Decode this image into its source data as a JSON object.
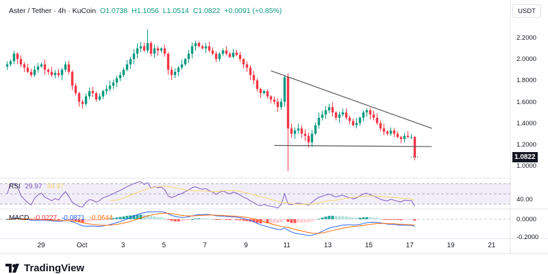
{
  "header": {
    "symbol": "Aster / Tether · 4h · KuCoin",
    "open": "O1.0738",
    "high": "H1.1056",
    "low": "L1.0514",
    "close": "C1.0822",
    "change": "+0.0091 (+0.85%)"
  },
  "currency_button": "USDT",
  "price_axis": [
    "2.2000",
    "2.0000",
    "1.8000",
    "1.6000",
    "1.4000",
    "1.2000",
    "1.0000"
  ],
  "last_price": "1.0822",
  "rsi": {
    "label": "RSI",
    "value": "29.97",
    "ma": "39.97",
    "axis": "40.00"
  },
  "macd": {
    "label": "MACD",
    "hist": "-0.0227",
    "macd": "-0.0871",
    "signal": "-0.0644",
    "axis": [
      "0.0000",
      "-0.2000"
    ]
  },
  "time_axis": [
    "29",
    "Oct",
    "3",
    "5",
    "7",
    "9",
    "11",
    "13",
    "15",
    "17",
    "19",
    "21"
  ],
  "brand": "TradingView",
  "colors": {
    "up": "#089981",
    "down": "#f23645",
    "rsi": "#7e57c2",
    "rsi_ma": "#f5d76e",
    "macd": "#2962ff",
    "signal": "#ff6d00"
  },
  "chart_data": {
    "type": "candlestick",
    "title": "Aster / Tether 4h KuCoin",
    "ylim": [
      0.95,
      2.3
    ],
    "closes": [
      1.95,
      1.98,
      2.05,
      2.0,
      1.95,
      1.92,
      1.88,
      1.85,
      1.9,
      1.93,
      1.95,
      1.9,
      1.88,
      1.85,
      1.87,
      1.85,
      1.9,
      1.95,
      1.88,
      1.75,
      1.68,
      1.6,
      1.58,
      1.65,
      1.7,
      1.68,
      1.62,
      1.65,
      1.7,
      1.72,
      1.75,
      1.78,
      1.82,
      1.85,
      1.9,
      1.95,
      2.0,
      2.05,
      2.1,
      2.12,
      2.08,
      2.15,
      2.05,
      2.1,
      2.08,
      2.1,
      2.05,
      1.9,
      1.85,
      1.88,
      1.92,
      1.95,
      2.0,
      2.05,
      2.12,
      2.15,
      2.12,
      2.1,
      2.12,
      2.08,
      2.05,
      2.0,
      2.05,
      2.08,
      2.05,
      2.02,
      2.06,
      2.04,
      2.0,
      1.95,
      1.92,
      1.85,
      1.8,
      1.72,
      1.68,
      1.7,
      1.65,
      1.62,
      1.6,
      1.55,
      1.6,
      1.83,
      1.35,
      1.3,
      1.33,
      1.35,
      1.3,
      1.28,
      1.22,
      1.3,
      1.38,
      1.45,
      1.48,
      1.52,
      1.55,
      1.5,
      1.45,
      1.48,
      1.5,
      1.45,
      1.42,
      1.38,
      1.4,
      1.45,
      1.5,
      1.52,
      1.48,
      1.45,
      1.4,
      1.35,
      1.32,
      1.3,
      1.33,
      1.3,
      1.27,
      1.25,
      1.28,
      1.27,
      1.27,
      1.0822
    ],
    "last_candle": {
      "open": 1.0738,
      "high": 1.1056,
      "low": 1.0514,
      "close": 1.0822
    },
    "extreme_lows": {
      "82": 0.95
    },
    "extreme_highs": {
      "81": 1.85,
      "41": 2.28
    },
    "trendlines": [
      {
        "from": [
          77,
          1.89
        ],
        "to": [
          124,
          1.35
        ]
      },
      {
        "from": [
          78,
          1.19
        ],
        "to": [
          124,
          1.18
        ]
      }
    ]
  }
}
